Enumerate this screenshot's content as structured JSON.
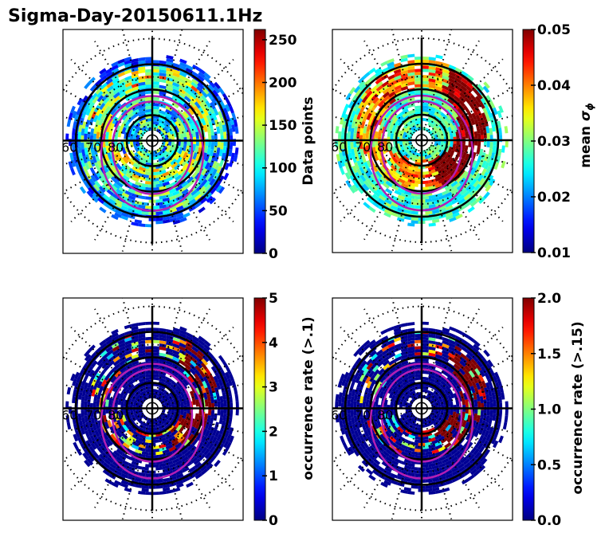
{
  "figure": {
    "title": "Sigma-Day-20150611.1Hz"
  },
  "chart_data": [
    {
      "type": "heatmap",
      "projection": "polar",
      "panel": "top-left",
      "title": "",
      "colormap": "jet",
      "colorbar": {
        "label": "Data points",
        "range": [
          0,
          262
        ],
        "ticks": [
          0,
          50,
          100,
          150,
          200,
          250
        ],
        "tick_labels": [
          "0",
          "50",
          "100",
          "150",
          "200",
          "250"
        ]
      },
      "lat_labels": [
        "60",
        "70",
        "80"
      ],
      "lat_circles": [
        60,
        70,
        80
      ],
      "grid": true,
      "auroral_oval": true,
      "value_profile": "mostly 20-180, ring of higher values 150-220 near 65 deg",
      "seed": 11
    },
    {
      "type": "heatmap",
      "projection": "polar",
      "panel": "top-right",
      "title": "",
      "colormap": "jet",
      "colorbar": {
        "label": "mean σϕ",
        "label_main": "mean ",
        "label_symbol": "σ",
        "label_sub": "ϕ",
        "range": [
          0.01,
          0.05
        ],
        "ticks": [
          0.01,
          0.02,
          0.03,
          0.04,
          0.05
        ],
        "tick_labels": [
          "0.01",
          "0.02",
          "0.03",
          "0.04",
          "0.05"
        ]
      },
      "lat_labels": [
        "60",
        "70",
        "80"
      ],
      "lat_circles": [
        60,
        70,
        80
      ],
      "grid": true,
      "auroral_oval": true,
      "value_profile": "0.02-0.03 at low latitudes, 0.04-0.05 in auroral oval dusk/dawn",
      "seed": 23
    },
    {
      "type": "heatmap",
      "projection": "polar",
      "panel": "bottom-left",
      "title": "",
      "colormap": "jet",
      "colorbar": {
        "label": "occurrence rate (>.1)",
        "range": [
          0,
          5
        ],
        "ticks": [
          0,
          1,
          2,
          3,
          4,
          5
        ],
        "tick_labels": [
          "0",
          "1",
          "2",
          "3",
          "4",
          "5"
        ]
      },
      "lat_labels": [
        "60",
        "70",
        "80"
      ],
      "lat_circles": [
        60,
        70,
        80
      ],
      "grid": true,
      "auroral_oval": true,
      "value_profile": "near 0 everywhere, up to 5 in dawn-side auroral oval",
      "seed": 37
    },
    {
      "type": "heatmap",
      "projection": "polar",
      "panel": "bottom-right",
      "title": "",
      "colormap": "jet",
      "colorbar": {
        "label": "occurrence rate (>.15)",
        "range": [
          0.0,
          2.0
        ],
        "ticks": [
          0.0,
          0.5,
          1.0,
          1.5,
          2.0
        ],
        "tick_labels": [
          "0.0",
          "0.5",
          "1.0",
          "1.5",
          "2.0"
        ]
      },
      "lat_labels": [
        "60",
        "70",
        "80"
      ],
      "lat_circles": [
        60,
        70,
        80
      ],
      "grid": true,
      "auroral_oval": true,
      "value_profile": "near 0 everywhere, up to 2 in dawn-side auroral oval",
      "seed": 41
    }
  ]
}
